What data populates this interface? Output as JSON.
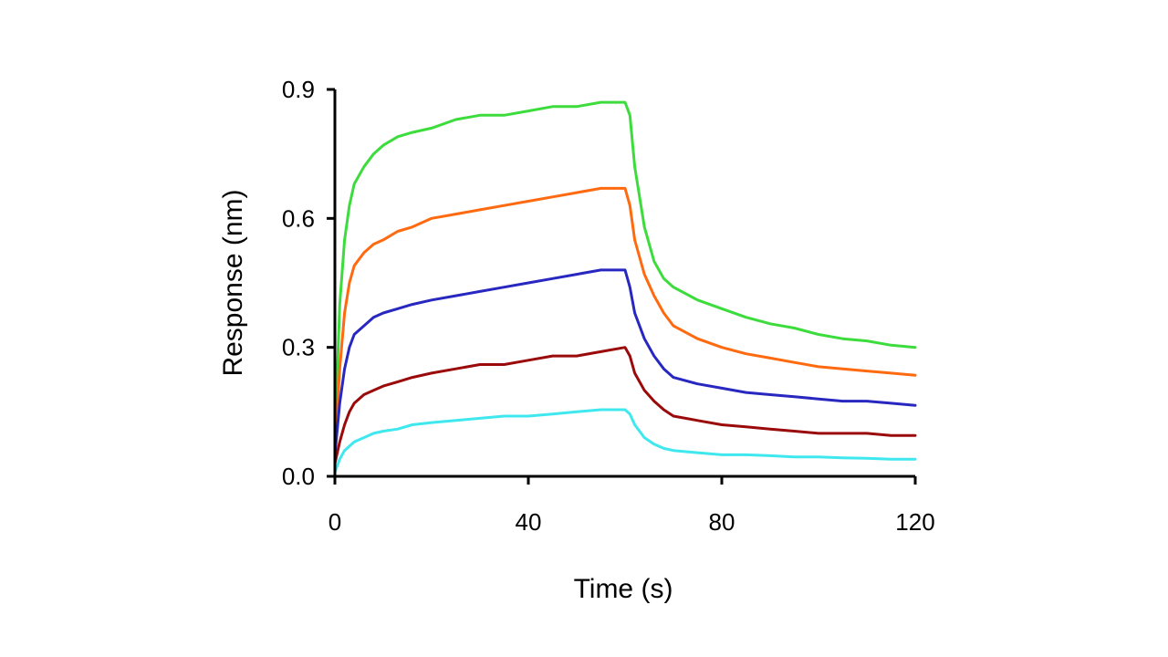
{
  "chart_data": {
    "type": "line",
    "xlabel": "Time (s)",
    "ylabel": "Response (nm)",
    "xlim": [
      0,
      120
    ],
    "ylim": [
      0,
      0.9
    ],
    "x_ticks": [
      0,
      40,
      80,
      120
    ],
    "x_tick_labels": [
      "0",
      "40",
      "80",
      "120"
    ],
    "y_ticks": [
      0,
      0.3,
      0.6,
      0.9
    ],
    "y_tick_labels": [
      "0.0",
      "0.3",
      "0.6",
      "0.9"
    ],
    "grid": false,
    "series": [
      {
        "color": "#3ddc3d",
        "x": [
          0,
          1,
          2,
          3,
          4,
          6,
          8,
          10,
          13,
          16,
          20,
          25,
          30,
          35,
          40,
          45,
          50,
          55,
          60,
          61,
          62,
          64,
          66,
          68,
          70,
          75,
          80,
          85,
          90,
          95,
          100,
          105,
          110,
          115,
          120
        ],
        "y": [
          0.08,
          0.4,
          0.55,
          0.63,
          0.68,
          0.72,
          0.75,
          0.77,
          0.79,
          0.8,
          0.81,
          0.83,
          0.84,
          0.84,
          0.85,
          0.86,
          0.86,
          0.87,
          0.87,
          0.84,
          0.72,
          0.58,
          0.5,
          0.46,
          0.44,
          0.41,
          0.39,
          0.37,
          0.355,
          0.345,
          0.33,
          0.32,
          0.315,
          0.305,
          0.3
        ]
      },
      {
        "color": "#ff6a10",
        "x": [
          0,
          1,
          2,
          3,
          4,
          6,
          8,
          10,
          13,
          16,
          20,
          25,
          30,
          35,
          40,
          45,
          50,
          55,
          60,
          61,
          62,
          64,
          66,
          68,
          70,
          75,
          80,
          85,
          90,
          95,
          100,
          105,
          110,
          115,
          120
        ],
        "y": [
          0.06,
          0.25,
          0.38,
          0.45,
          0.49,
          0.52,
          0.54,
          0.55,
          0.57,
          0.58,
          0.6,
          0.61,
          0.62,
          0.63,
          0.64,
          0.65,
          0.66,
          0.67,
          0.67,
          0.63,
          0.55,
          0.47,
          0.42,
          0.38,
          0.35,
          0.32,
          0.3,
          0.285,
          0.275,
          0.265,
          0.255,
          0.25,
          0.245,
          0.24,
          0.235
        ]
      },
      {
        "color": "#2828c0",
        "x": [
          0,
          1,
          2,
          3,
          4,
          6,
          8,
          10,
          13,
          16,
          20,
          25,
          30,
          35,
          40,
          45,
          50,
          55,
          60,
          61,
          62,
          64,
          66,
          68,
          70,
          75,
          80,
          85,
          90,
          95,
          100,
          105,
          110,
          115,
          120
        ],
        "y": [
          0.05,
          0.17,
          0.25,
          0.3,
          0.33,
          0.35,
          0.37,
          0.38,
          0.39,
          0.4,
          0.41,
          0.42,
          0.43,
          0.44,
          0.45,
          0.46,
          0.47,
          0.48,
          0.48,
          0.44,
          0.38,
          0.32,
          0.28,
          0.25,
          0.23,
          0.215,
          0.205,
          0.195,
          0.19,
          0.185,
          0.18,
          0.175,
          0.175,
          0.17,
          0.165
        ]
      },
      {
        "color": "#9b0a0a",
        "x": [
          0,
          1,
          2,
          3,
          4,
          6,
          8,
          10,
          13,
          16,
          20,
          25,
          30,
          35,
          40,
          45,
          50,
          55,
          60,
          61,
          62,
          64,
          66,
          68,
          70,
          75,
          80,
          85,
          90,
          95,
          100,
          105,
          110,
          115,
          120
        ],
        "y": [
          0.03,
          0.08,
          0.12,
          0.15,
          0.17,
          0.19,
          0.2,
          0.21,
          0.22,
          0.23,
          0.24,
          0.25,
          0.26,
          0.26,
          0.27,
          0.28,
          0.28,
          0.29,
          0.3,
          0.28,
          0.24,
          0.2,
          0.175,
          0.155,
          0.14,
          0.13,
          0.12,
          0.115,
          0.11,
          0.105,
          0.1,
          0.1,
          0.1,
          0.095,
          0.095
        ]
      },
      {
        "color": "#3ee8ee",
        "x": [
          0,
          1,
          2,
          3,
          4,
          6,
          8,
          10,
          13,
          16,
          20,
          25,
          30,
          35,
          40,
          45,
          50,
          55,
          60,
          61,
          62,
          64,
          66,
          68,
          70,
          75,
          80,
          85,
          90,
          95,
          100,
          105,
          110,
          115,
          120
        ],
        "y": [
          0.01,
          0.04,
          0.06,
          0.07,
          0.08,
          0.09,
          0.1,
          0.105,
          0.11,
          0.12,
          0.125,
          0.13,
          0.135,
          0.14,
          0.14,
          0.145,
          0.15,
          0.155,
          0.155,
          0.145,
          0.12,
          0.09,
          0.075,
          0.065,
          0.06,
          0.055,
          0.05,
          0.05,
          0.048,
          0.045,
          0.045,
          0.043,
          0.042,
          0.04,
          0.04
        ]
      }
    ]
  }
}
